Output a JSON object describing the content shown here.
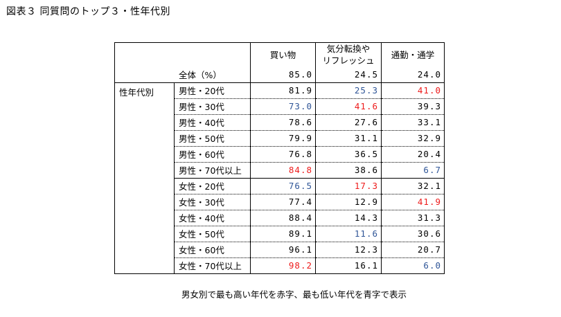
{
  "title": "図表３ 同質問のトップ３・性年代別",
  "columns": [
    "買い物",
    "気分転換や\nリフレッシュ",
    "通勤・通学"
  ],
  "total": {
    "label": "全体（%）",
    "values": [
      "85.0",
      "24.5",
      "24.0"
    ],
    "colors": [
      "",
      "",
      ""
    ]
  },
  "group_label": "性年代別",
  "rows": [
    {
      "label": "男性・20代",
      "values": [
        "81.9",
        "25.3",
        "41.0"
      ],
      "colors": [
        "",
        "blue",
        "red"
      ]
    },
    {
      "label": "男性・30代",
      "values": [
        "73.0",
        "41.6",
        "39.3"
      ],
      "colors": [
        "blue",
        "red",
        ""
      ]
    },
    {
      "label": "男性・40代",
      "values": [
        "78.6",
        "27.6",
        "33.1"
      ],
      "colors": [
        "",
        "",
        ""
      ]
    },
    {
      "label": "男性・50代",
      "values": [
        "79.9",
        "31.1",
        "32.9"
      ],
      "colors": [
        "",
        "",
        ""
      ]
    },
    {
      "label": "男性・60代",
      "values": [
        "76.8",
        "36.5",
        "20.4"
      ],
      "colors": [
        "",
        "",
        ""
      ]
    },
    {
      "label": "男性・70代以上",
      "values": [
        "84.8",
        "38.6",
        "6.7"
      ],
      "colors": [
        "red",
        "",
        "blue"
      ]
    },
    {
      "label": "女性・20代",
      "values": [
        "76.5",
        "17.3",
        "32.1"
      ],
      "colors": [
        "blue",
        "red",
        ""
      ]
    },
    {
      "label": "女性・30代",
      "values": [
        "77.4",
        "12.9",
        "41.9"
      ],
      "colors": [
        "",
        "",
        "red"
      ]
    },
    {
      "label": "女性・40代",
      "values": [
        "88.4",
        "14.3",
        "31.3"
      ],
      "colors": [
        "",
        "",
        ""
      ]
    },
    {
      "label": "女性・50代",
      "values": [
        "89.1",
        "11.6",
        "30.6"
      ],
      "colors": [
        "",
        "blue",
        ""
      ]
    },
    {
      "label": "女性・60代",
      "values": [
        "96.1",
        "12.3",
        "20.7"
      ],
      "colors": [
        "",
        "",
        ""
      ]
    },
    {
      "label": "女性・70代以上",
      "values": [
        "98.2",
        "16.1",
        "6.0"
      ],
      "colors": [
        "red",
        "",
        "blue"
      ]
    }
  ],
  "note": "男女別で最も高い年代を赤字、最も低い年代を青字で表示",
  "color_map": {
    "red": "#ee1c1c",
    "blue": "#2f5597"
  }
}
